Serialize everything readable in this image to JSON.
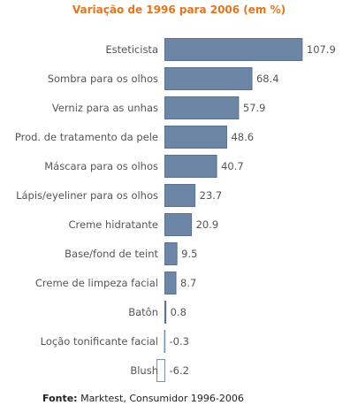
{
  "chart_data": {
    "type": "bar",
    "orientation": "horizontal",
    "title": "Variação de 1996 para 2006 (em %)",
    "categories": [
      "Esteticista",
      "Sombra para os olhos",
      "Verniz para as unhas",
      "Prod. de tratamento da pele",
      "Máscara para os olhos",
      "Lápis/eyeliner para os olhos",
      "Creme hidratante",
      "Base/fond de teint",
      "Creme de limpeza facial",
      "Batôn",
      "Loção tonificante facial",
      "Blush"
    ],
    "values": [
      107.9,
      68.4,
      57.9,
      48.6,
      40.7,
      23.7,
      20.9,
      9.5,
      8.7,
      0.8,
      -0.3,
      -6.2
    ],
    "value_labels": [
      "107.9",
      "68.4",
      "57.9",
      "48.6",
      "40.7",
      "23.7",
      "20.9",
      "9.5",
      "8.7",
      "0.8",
      "-0.3",
      "-6.2"
    ],
    "xlim": [
      -10,
      110
    ],
    "grid": false,
    "colors": {
      "positive_fill": "#6e86a6",
      "positive_stroke": "#5a7291",
      "negative_fill": "#ffffff",
      "negative_stroke": "#7890b0",
      "title": "#e8731a"
    }
  },
  "source": {
    "prefix": "Fonte:",
    "text": " Marktest, Consumidor 1996-2006"
  }
}
